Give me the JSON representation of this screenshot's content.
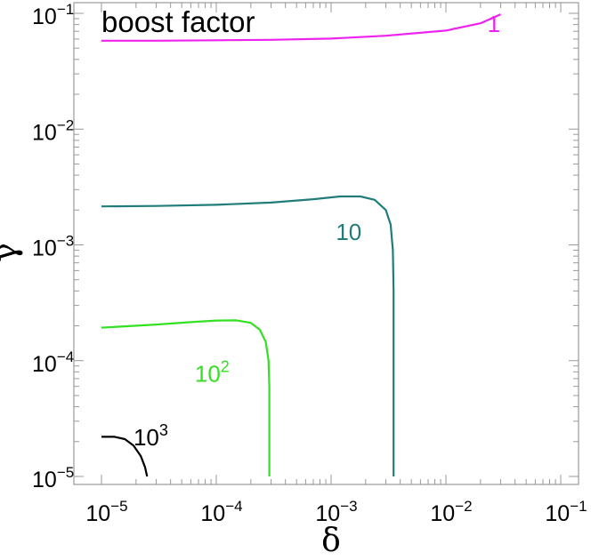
{
  "chart_data": {
    "type": "line",
    "title": "boost factor",
    "xlabel": "δ",
    "ylabel": "γ",
    "xscale": "log",
    "yscale": "log",
    "xlim": [
      1e-05,
      0.1
    ],
    "ylim": [
      1e-05,
      0.1
    ],
    "grid": false,
    "x_ticks": [
      {
        "base": "10",
        "exp": "−5",
        "value": 1e-05
      },
      {
        "base": "10",
        "exp": "−4",
        "value": 0.0001
      },
      {
        "base": "10",
        "exp": "−3",
        "value": 0.001
      },
      {
        "base": "10",
        "exp": "−2",
        "value": 0.01
      },
      {
        "base": "10",
        "exp": "−1",
        "value": 0.1
      }
    ],
    "y_ticks": [
      {
        "base": "10",
        "exp": "−5",
        "value": 1e-05
      },
      {
        "base": "10",
        "exp": "−4",
        "value": 0.0001
      },
      {
        "base": "10",
        "exp": "−3",
        "value": 0.001
      },
      {
        "base": "10",
        "exp": "−2",
        "value": 0.01
      },
      {
        "base": "10",
        "exp": "−1",
        "value": 0.1
      }
    ],
    "series": [
      {
        "label_base": "",
        "label_exp": "",
        "label_text": "1",
        "color": "#ee22ee",
        "label_at": [
          0.023,
          0.069
        ],
        "points": [
          [
            1e-05,
            0.058
          ],
          [
            3e-05,
            0.058
          ],
          [
            0.0001,
            0.0585
          ],
          [
            0.0003,
            0.059
          ],
          [
            0.001,
            0.0605
          ],
          [
            0.003,
            0.064
          ],
          [
            0.01,
            0.071
          ],
          [
            0.02,
            0.082
          ],
          [
            0.03,
            0.098
          ]
        ]
      },
      {
        "label_base": "",
        "label_exp": "",
        "label_text": "10",
        "color": "#217d7a",
        "label_at": [
          0.0011,
          0.0011
        ],
        "points": [
          [
            1e-05,
            0.00215
          ],
          [
            3e-05,
            0.00217
          ],
          [
            0.0001,
            0.00222
          ],
          [
            0.0003,
            0.00232
          ],
          [
            0.0007,
            0.00248
          ],
          [
            0.0012,
            0.00262
          ],
          [
            0.0018,
            0.00262
          ],
          [
            0.0024,
            0.00245
          ],
          [
            0.003,
            0.002
          ],
          [
            0.0033,
            0.0015
          ],
          [
            0.00345,
            0.0009
          ],
          [
            0.0035,
            0.0004
          ],
          [
            0.0035,
            0.0001
          ],
          [
            0.0035,
            1e-05
          ]
        ]
      },
      {
        "label_base": "10",
        "label_exp": "2",
        "label_text": "",
        "color": "#33e022",
        "label_at": [
          6.5e-05,
          6.6e-05
        ],
        "points": [
          [
            1e-05,
            0.000193
          ],
          [
            3e-05,
            0.000205
          ],
          [
            6e-05,
            0.000215
          ],
          [
            0.0001,
            0.000222
          ],
          [
            0.00015,
            0.000223
          ],
          [
            0.0002,
            0.000212
          ],
          [
            0.00024,
            0.000185
          ],
          [
            0.00027,
            0.000145
          ],
          [
            0.000285,
            0.0001
          ],
          [
            0.00029,
            6e-05
          ],
          [
            0.00029,
            3e-05
          ],
          [
            0.00029,
            1e-05
          ]
        ]
      },
      {
        "label_base": "10",
        "label_exp": "3",
        "label_text": "",
        "color": "#000000",
        "label_at": [
          1.9e-05,
          1.85e-05
        ],
        "points": [
          [
            1e-05,
            2.2e-05
          ],
          [
            1.3e-05,
            2.2e-05
          ],
          [
            1.6e-05,
            2.1e-05
          ],
          [
            1.9e-05,
            1.85e-05
          ],
          [
            2.2e-05,
            1.5e-05
          ],
          [
            2.4e-05,
            1.2e-05
          ],
          [
            2.5e-05,
            1e-05
          ]
        ]
      }
    ]
  }
}
